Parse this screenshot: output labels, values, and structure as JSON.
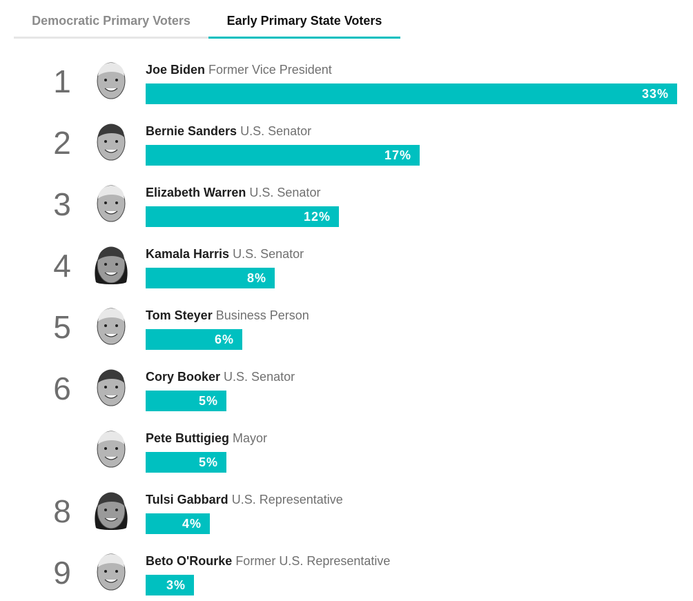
{
  "tabs": [
    {
      "label": "Democratic Primary Voters",
      "active": false
    },
    {
      "label": "Early Primary State Voters",
      "active": true
    }
  ],
  "colors": {
    "bar": "#00c0c0",
    "accent": "#00bfbf",
    "tab_inactive": "#8c8c8c"
  },
  "chart_data": {
    "type": "bar",
    "orientation": "horizontal",
    "categories": [
      "Joe Biden",
      "Bernie Sanders",
      "Elizabeth Warren",
      "Kamala Harris",
      "Tom Steyer",
      "Cory Booker",
      "Pete Buttigieg",
      "Tulsi Gabbard",
      "Beto O'Rourke"
    ],
    "values": [
      33,
      17,
      12,
      8,
      6,
      5,
      5,
      4,
      3
    ],
    "xlim": [
      0,
      33
    ],
    "grid": false,
    "rows": [
      {
        "rank": "1",
        "name": "Joe Biden",
        "role": "Former Vice President",
        "value": 33,
        "label": "33%"
      },
      {
        "rank": "2",
        "name": "Bernie Sanders",
        "role": "U.S. Senator",
        "value": 17,
        "label": "17%"
      },
      {
        "rank": "3",
        "name": "Elizabeth Warren",
        "role": "U.S. Senator",
        "value": 12,
        "label": "12%"
      },
      {
        "rank": "4",
        "name": "Kamala Harris",
        "role": "U.S. Senator",
        "value": 8,
        "label": "8%"
      },
      {
        "rank": "5",
        "name": "Tom Steyer",
        "role": "Business Person",
        "value": 6,
        "label": "6%"
      },
      {
        "rank": "6",
        "name": "Cory Booker",
        "role": "U.S. Senator",
        "value": 5,
        "label": "5%"
      },
      {
        "rank": "",
        "name": "Pete Buttigieg",
        "role": "Mayor",
        "value": 5,
        "label": "5%"
      },
      {
        "rank": "8",
        "name": "Tulsi Gabbard",
        "role": "U.S. Representative",
        "value": 4,
        "label": "4%"
      },
      {
        "rank": "9",
        "name": "Beto O'Rourke",
        "role": "Former U.S. Representative",
        "value": 3,
        "label": "3%"
      }
    ]
  }
}
